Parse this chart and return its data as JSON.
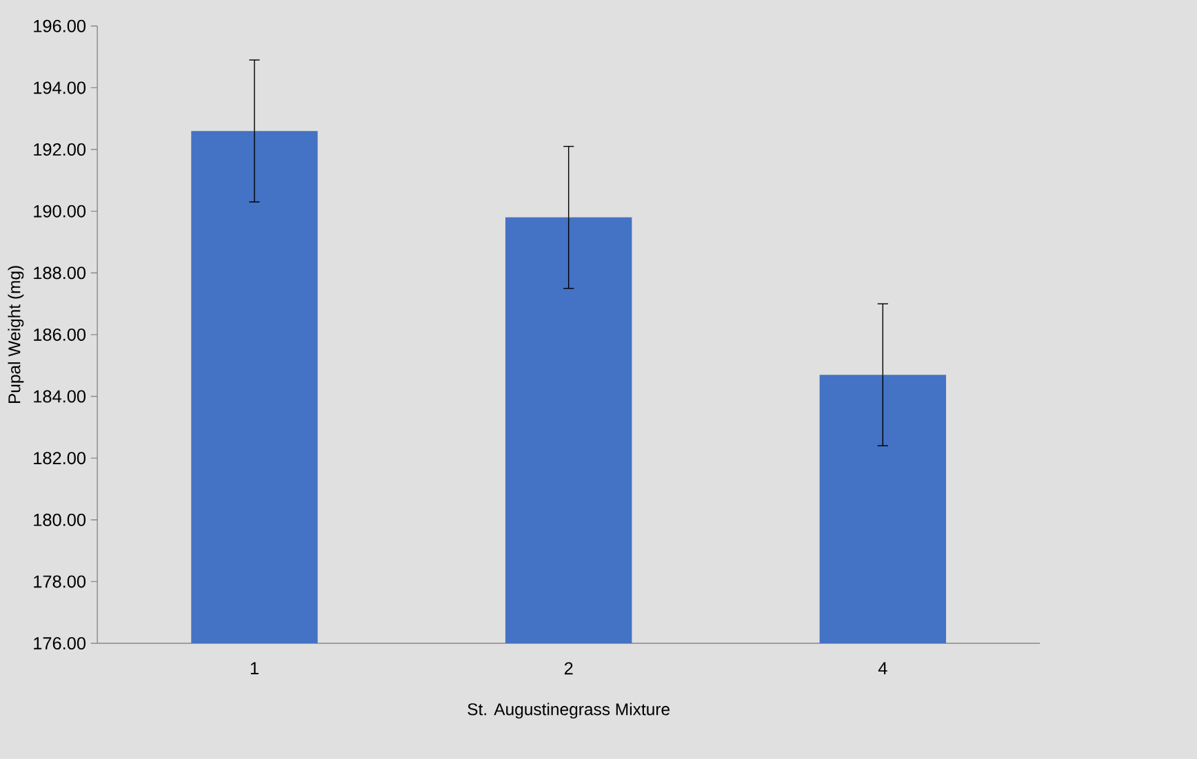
{
  "chart_data": {
    "type": "bar",
    "categories": [
      "1",
      "2",
      "4"
    ],
    "values": [
      192.6,
      189.8,
      184.7
    ],
    "errors": [
      2.3,
      2.3,
      2.3
    ],
    "color": "#4472c4",
    "xlabel": "St. Augustinegrass Mixture",
    "ylabel": "Pupal Weight (mg)",
    "ylim": [
      176,
      196
    ],
    "yticks": [
      {
        "value": 176,
        "label": "176.00"
      },
      {
        "value": 178,
        "label": "178.00"
      },
      {
        "value": 180,
        "label": "180.00"
      },
      {
        "value": 182,
        "label": "182.00"
      },
      {
        "value": 184,
        "label": "184.00"
      },
      {
        "value": 186,
        "label": "186.00"
      },
      {
        "value": 188,
        "label": "188.00"
      },
      {
        "value": 190,
        "label": "190.00"
      },
      {
        "value": 192,
        "label": "192.00"
      },
      {
        "value": 194,
        "label": "194.00"
      },
      {
        "value": 196,
        "label": "196.00"
      }
    ]
  }
}
